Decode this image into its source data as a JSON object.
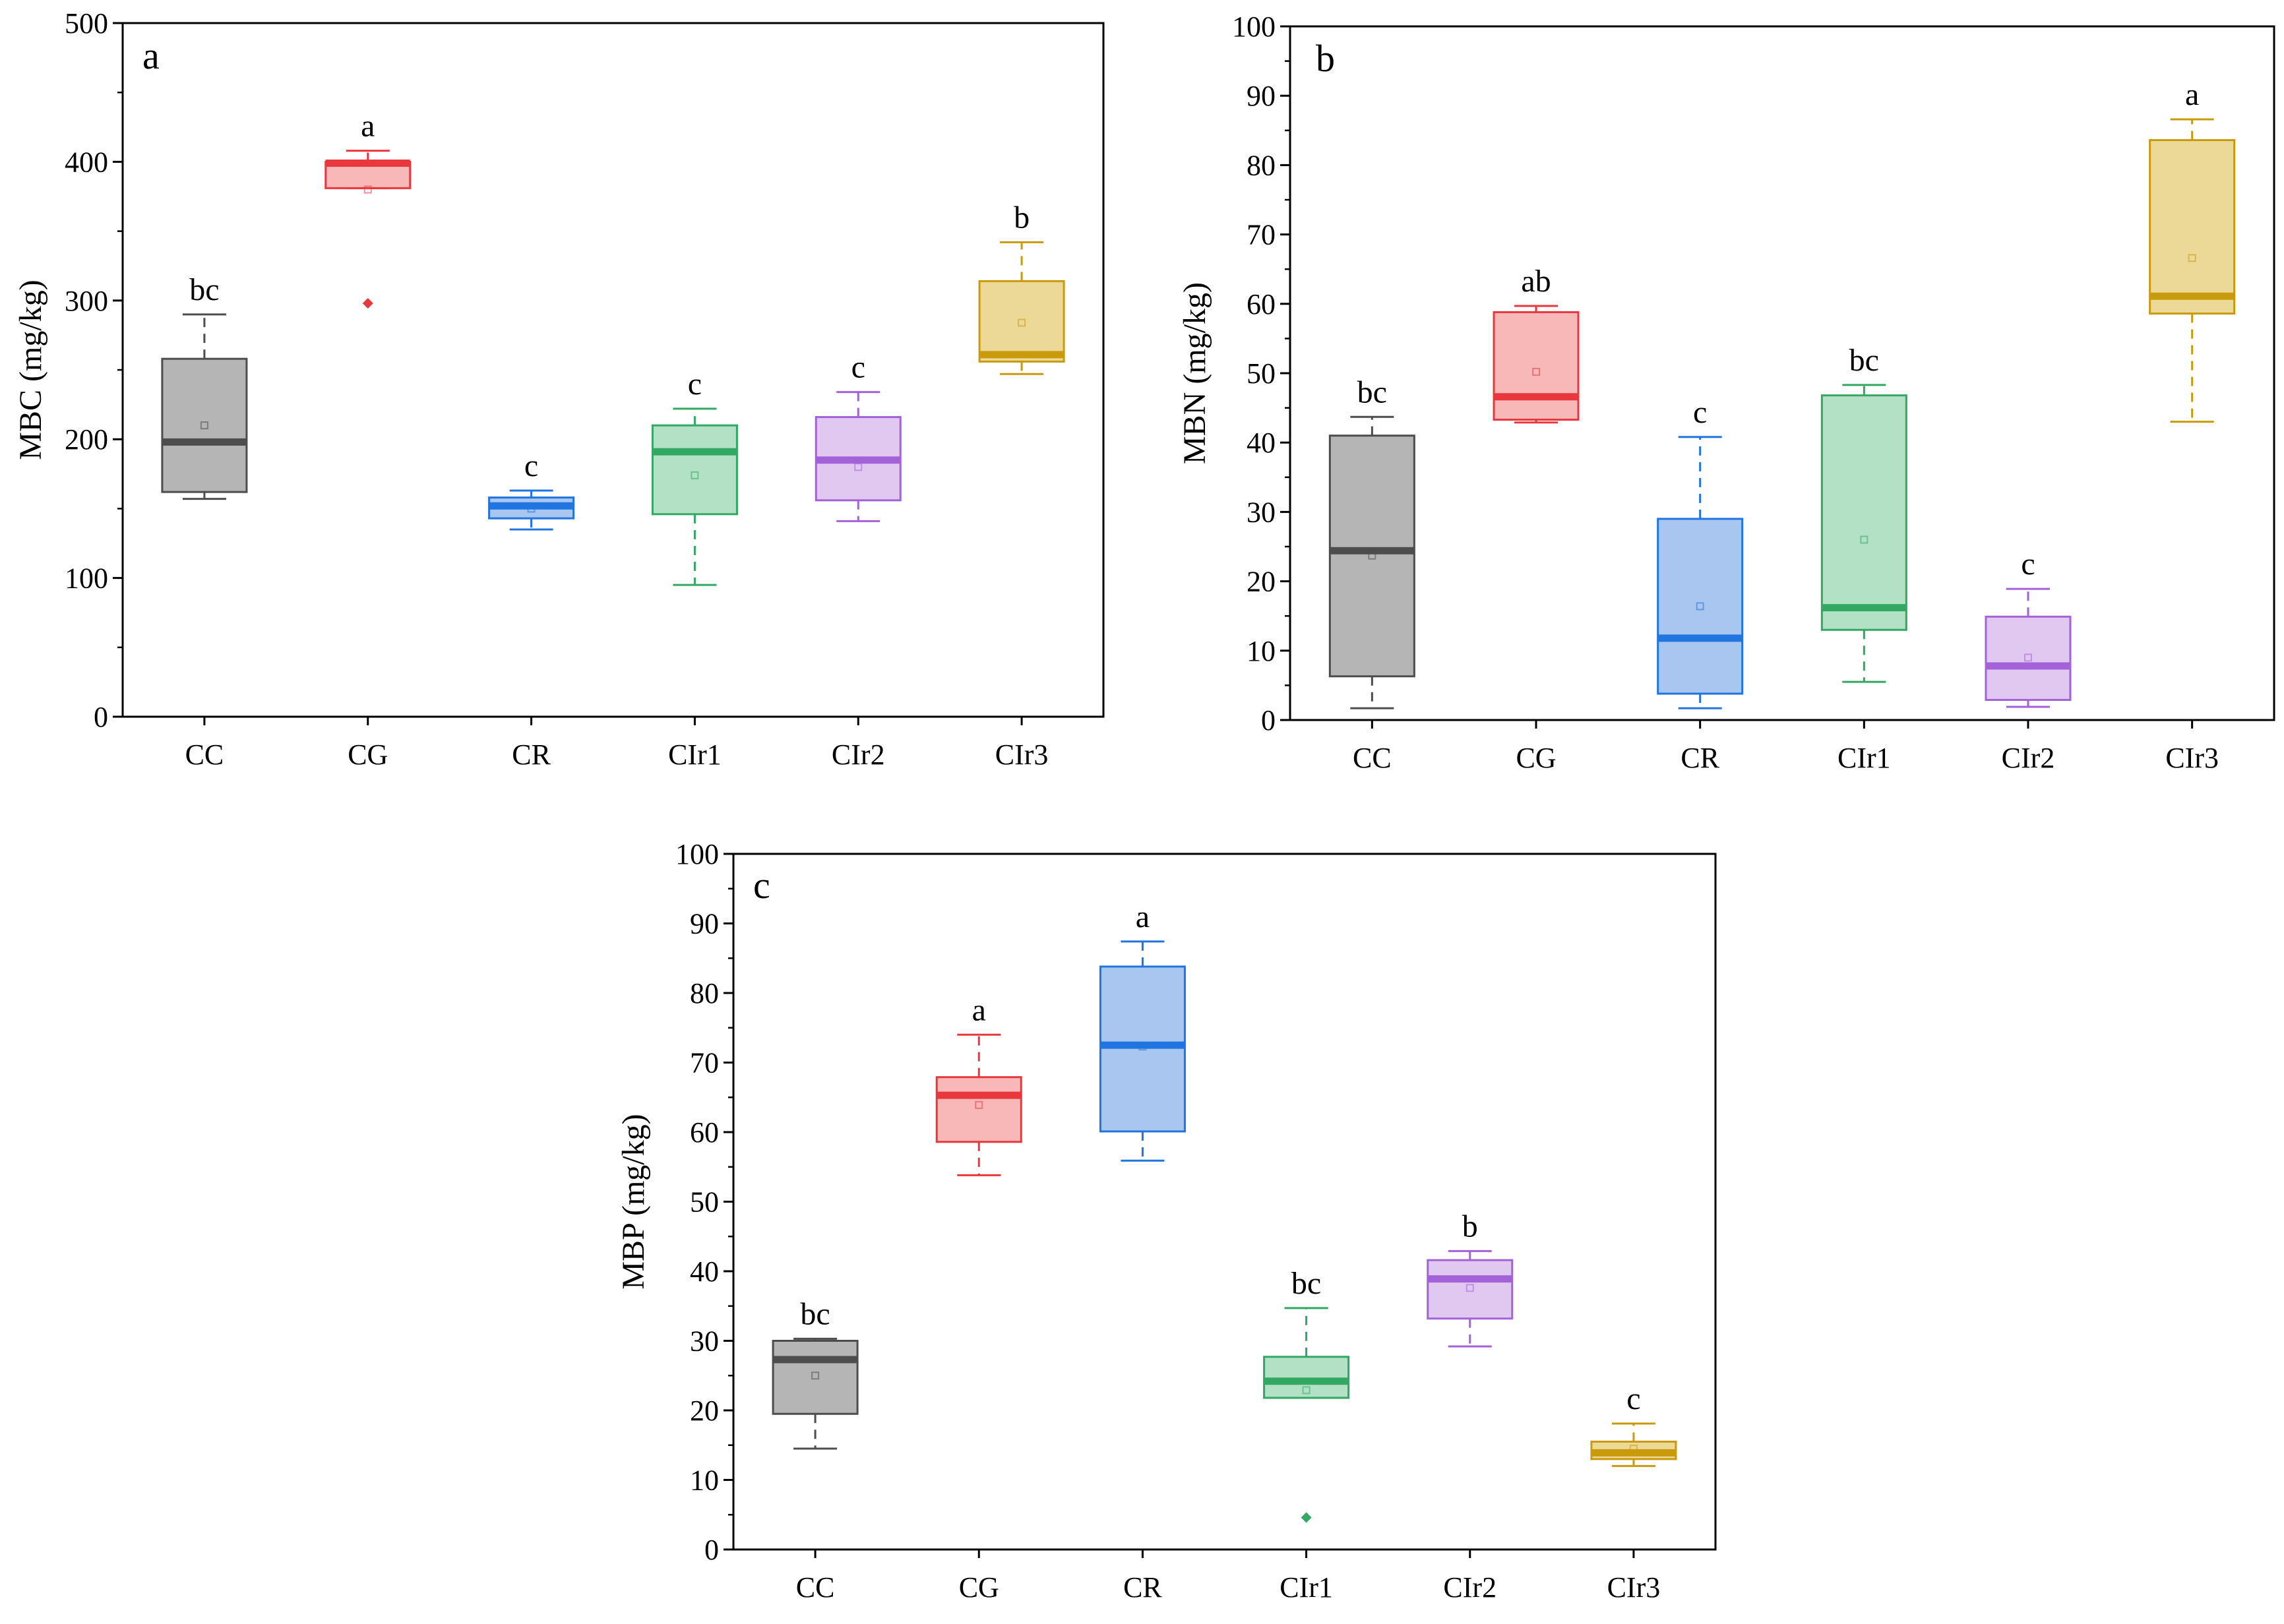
{
  "chart_data": [
    {
      "panel_label": "a",
      "type": "box",
      "ylabel": "MBC (mg/kg)",
      "ylim": [
        0,
        500
      ],
      "yticks": [
        0,
        100,
        200,
        300,
        400,
        500
      ],
      "minor_step": 50,
      "categories": [
        "CC",
        "CG",
        "CR",
        "CIr1",
        "CIr2",
        "CIr3"
      ],
      "groups": [
        {
          "letter": "bc",
          "whisker_low": 157,
          "q1": 162,
          "median": 198,
          "q3": 258,
          "whisker_high": 290,
          "mean": 210,
          "outliers": [],
          "color": "#4d4d4d",
          "fill": "#b5b5b5"
        },
        {
          "letter": "a",
          "whisker_low": 381,
          "q1": 381,
          "median": 399,
          "q3": 400,
          "whisker_high": 408,
          "mean": 380,
          "outliers": [
            298
          ],
          "color": "#e8383d",
          "fill": "#f8b8b8"
        },
        {
          "letter": "c",
          "whisker_low": 135,
          "q1": 143,
          "median": 152,
          "q3": 158,
          "whisker_high": 163,
          "mean": 150,
          "outliers": [],
          "color": "#2075e0",
          "fill": "#a8c6ef"
        },
        {
          "letter": "c",
          "whisker_low": 95,
          "q1": 146,
          "median": 191,
          "q3": 210,
          "whisker_high": 222,
          "mean": 174,
          "outliers": [],
          "color": "#32a862",
          "fill": "#b2e1c6"
        },
        {
          "letter": "c",
          "whisker_low": 141,
          "q1": 156,
          "median": 185,
          "q3": 216,
          "whisker_high": 234,
          "mean": 180,
          "outliers": [],
          "color": "#a462d8",
          "fill": "#e1c8f1"
        },
        {
          "letter": "b",
          "whisker_low": 247,
          "q1": 256,
          "median": 261,
          "q3": 314,
          "whisker_high": 342,
          "mean": 284,
          "outliers": [],
          "color": "#c99b0c",
          "fill": "#ecd897"
        }
      ]
    },
    {
      "panel_label": "b",
      "type": "box",
      "ylabel": "MBN (mg/kg)",
      "ylim": [
        0,
        100
      ],
      "yticks": [
        0,
        10,
        20,
        30,
        40,
        50,
        60,
        70,
        80,
        90,
        100
      ],
      "minor_step": 5,
      "categories": [
        "CC",
        "CG",
        "CR",
        "CIr1",
        "CIr2",
        "CIr3"
      ],
      "groups": [
        {
          "letter": "bc",
          "whisker_low": 1.7,
          "q1": 6.3,
          "median": 24.4,
          "q3": 41.0,
          "whisker_high": 43.7,
          "mean": 23.7,
          "outliers": [],
          "color": "#4d4d4d",
          "fill": "#b5b5b5"
        },
        {
          "letter": "ab",
          "whisker_low": 42.9,
          "q1": 43.3,
          "median": 46.6,
          "q3": 58.8,
          "whisker_high": 59.7,
          "mean": 50.2,
          "outliers": [],
          "color": "#e8383d",
          "fill": "#f8b8b8"
        },
        {
          "letter": "c",
          "whisker_low": 1.7,
          "q1": 3.8,
          "median": 11.8,
          "q3": 29.0,
          "whisker_high": 40.8,
          "mean": 16.4,
          "outliers": [],
          "color": "#2075e0",
          "fill": "#a8c6ef"
        },
        {
          "letter": "bc",
          "whisker_low": 5.5,
          "q1": 13.0,
          "median": 16.2,
          "q3": 46.8,
          "whisker_high": 48.3,
          "mean": 26.0,
          "outliers": [],
          "color": "#32a862",
          "fill": "#b2e1c6"
        },
        {
          "letter": "c",
          "whisker_low": 1.9,
          "q1": 2.9,
          "median": 7.8,
          "q3": 14.9,
          "whisker_high": 18.9,
          "mean": 9.0,
          "outliers": [],
          "color": "#a462d8",
          "fill": "#e1c8f1"
        },
        {
          "letter": "a",
          "whisker_low": 43.0,
          "q1": 58.6,
          "median": 61.1,
          "q3": 83.6,
          "whisker_high": 86.6,
          "mean": 66.6,
          "outliers": [],
          "color": "#c99b0c",
          "fill": "#ecd897"
        }
      ]
    },
    {
      "panel_label": "c",
      "type": "box",
      "ylabel": "MBP (mg/kg)",
      "ylim": [
        0,
        100
      ],
      "yticks": [
        0,
        10,
        20,
        30,
        40,
        50,
        60,
        70,
        80,
        90,
        100
      ],
      "minor_step": 5,
      "categories": [
        "CC",
        "CG",
        "CR",
        "CIr1",
        "CIr2",
        "CIr3"
      ],
      "groups": [
        {
          "letter": "bc",
          "whisker_low": 14.5,
          "q1": 19.5,
          "median": 27.3,
          "q3": 30.0,
          "whisker_high": 30.3,
          "mean": 25.0,
          "outliers": [],
          "color": "#4d4d4d",
          "fill": "#b5b5b5"
        },
        {
          "letter": "a",
          "whisker_low": 53.8,
          "q1": 58.6,
          "median": 65.3,
          "q3": 67.9,
          "whisker_high": 74.0,
          "mean": 63.9,
          "outliers": [],
          "color": "#e8383d",
          "fill": "#f8b8b8"
        },
        {
          "letter": "a",
          "whisker_low": 55.9,
          "q1": 60.1,
          "median": 72.5,
          "q3": 83.8,
          "whisker_high": 87.4,
          "mean": 72.3,
          "outliers": [],
          "color": "#2075e0",
          "fill": "#a8c6ef"
        },
        {
          "letter": "bc",
          "whisker_low": 21.8,
          "q1": 21.8,
          "median": 24.2,
          "q3": 27.7,
          "whisker_high": 34.7,
          "mean": 22.9,
          "outliers": [
            4.6
          ],
          "color": "#32a862",
          "fill": "#b2e1c6"
        },
        {
          "letter": "b",
          "whisker_low": 29.2,
          "q1": 33.2,
          "median": 38.9,
          "q3": 41.6,
          "whisker_high": 42.9,
          "mean": 37.6,
          "outliers": [],
          "color": "#a462d8",
          "fill": "#e1c8f1"
        },
        {
          "letter": "c",
          "whisker_low": 12.0,
          "q1": 13.0,
          "median": 13.9,
          "q3": 15.5,
          "whisker_high": 18.1,
          "mean": 14.5,
          "outliers": [],
          "color": "#c99b0c",
          "fill": "#ecd897"
        }
      ]
    }
  ]
}
